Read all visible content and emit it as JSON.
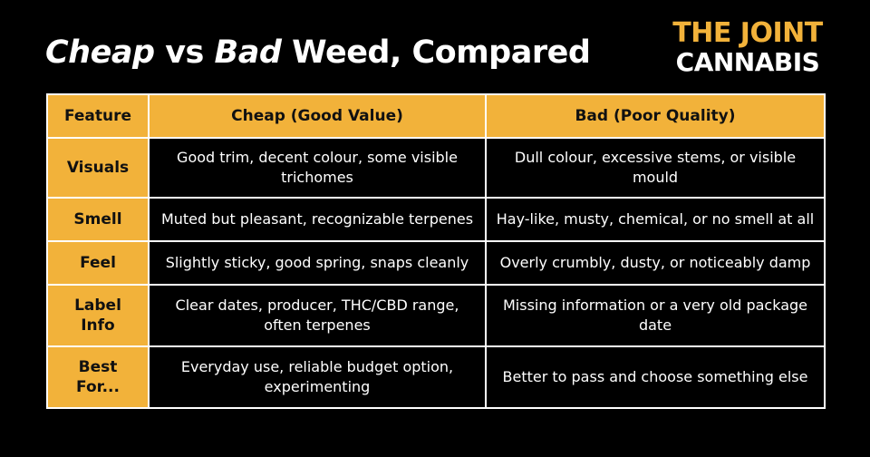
{
  "title": {
    "word1": "Cheap",
    "join": " vs ",
    "word2": "Bad",
    "rest": " Weed, Compared"
  },
  "logo": {
    "line1": "THE JOINT",
    "line2": "CANNABIS"
  },
  "colors": {
    "accent": "#f2b23a",
    "background": "#000000",
    "text": "#ffffff"
  },
  "table": {
    "headers": [
      "Feature",
      "Cheap (Good Value)",
      "Bad (Poor Quality)"
    ],
    "rows": [
      {
        "feature": "Visuals",
        "cheap": "Good trim, decent colour, some visible trichomes",
        "bad": "Dull colour, excessive stems, or visible mould"
      },
      {
        "feature": "Smell",
        "cheap": "Muted but pleasant, recognizable terpenes",
        "bad": "Hay-like, musty, chemical, or no smell at all"
      },
      {
        "feature": "Feel",
        "cheap": "Slightly sticky, good spring, snaps cleanly",
        "bad": "Overly crumbly, dusty, or noticeably damp"
      },
      {
        "feature": "Label Info",
        "cheap": "Clear dates, producer, THC/CBD range, often terpenes",
        "bad": "Missing information or a very old package date"
      },
      {
        "feature": "Best For...",
        "cheap": "Everyday use, reliable budget option, experimenting",
        "bad": "Better to pass and choose something else"
      }
    ]
  }
}
